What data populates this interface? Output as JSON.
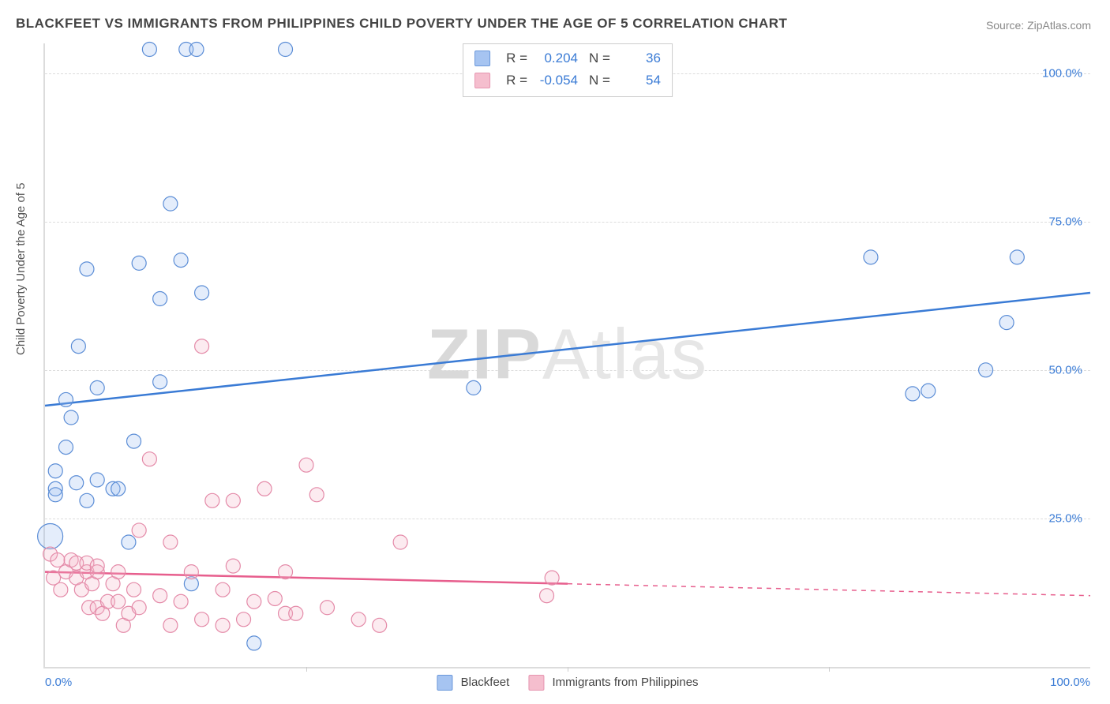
{
  "title": "BLACKFEET VS IMMIGRANTS FROM PHILIPPINES CHILD POVERTY UNDER THE AGE OF 5 CORRELATION CHART",
  "source_label": "Source:",
  "source_value": "ZipAtlas.com",
  "watermark_a": "ZIP",
  "watermark_b": "Atlas",
  "ylabel": "Child Poverty Under the Age of 5",
  "chart": {
    "type": "scatter-with-regression",
    "xlim": [
      0,
      100
    ],
    "ylim": [
      0,
      105
    ],
    "x_ticks_minor": [
      25,
      50,
      75
    ],
    "x_tick_labels": [
      "0.0%",
      "100.0%"
    ],
    "y_grid": [
      25,
      50,
      75,
      100
    ],
    "y_tick_labels": [
      "25.0%",
      "50.0%",
      "75.0%",
      "100.0%"
    ],
    "background_color": "#ffffff",
    "grid_color": "#dcdcdc",
    "axis_label_color": "#3a7bd5",
    "marker_radius": 9,
    "marker_radius_big": 16,
    "marker_stroke_width": 1.2,
    "marker_fill_opacity": 0.28,
    "trend_line_width": 2.5
  },
  "series": [
    {
      "name": "Blackfeet",
      "color_stroke": "#5b8dd6",
      "color_fill": "#9dbef0",
      "trend_color": "#3a7bd5",
      "R": "0.204",
      "N": "36",
      "trend": {
        "x1": 0,
        "y1": 44,
        "x2": 100,
        "y2": 63,
        "solid_until": 100
      },
      "points": [
        {
          "x": 0.5,
          "y": 22,
          "big": true
        },
        {
          "x": 1,
          "y": 33
        },
        {
          "x": 1,
          "y": 30
        },
        {
          "x": 1,
          "y": 29
        },
        {
          "x": 2,
          "y": 37
        },
        {
          "x": 2,
          "y": 45
        },
        {
          "x": 2.5,
          "y": 42
        },
        {
          "x": 3,
          "y": 31
        },
        {
          "x": 3.2,
          "y": 54
        },
        {
          "x": 4,
          "y": 67
        },
        {
          "x": 4,
          "y": 28
        },
        {
          "x": 5,
          "y": 31.5
        },
        {
          "x": 5,
          "y": 47
        },
        {
          "x": 6.5,
          "y": 30
        },
        {
          "x": 7,
          "y": 30
        },
        {
          "x": 8,
          "y": 21
        },
        {
          "x": 8.5,
          "y": 38
        },
        {
          "x": 9,
          "y": 68
        },
        {
          "x": 10,
          "y": 104
        },
        {
          "x": 11,
          "y": 48
        },
        {
          "x": 11,
          "y": 62
        },
        {
          "x": 12,
          "y": 78
        },
        {
          "x": 13,
          "y": 68.5
        },
        {
          "x": 13.5,
          "y": 104
        },
        {
          "x": 14,
          "y": 14
        },
        {
          "x": 14.5,
          "y": 104
        },
        {
          "x": 15,
          "y": 63
        },
        {
          "x": 20,
          "y": 4
        },
        {
          "x": 23,
          "y": 104
        },
        {
          "x": 41,
          "y": 47
        },
        {
          "x": 79,
          "y": 69
        },
        {
          "x": 83,
          "y": 46
        },
        {
          "x": 84.5,
          "y": 46.5
        },
        {
          "x": 90,
          "y": 50
        },
        {
          "x": 92,
          "y": 58
        },
        {
          "x": 93,
          "y": 69
        }
      ]
    },
    {
      "name": "Immigrants from Philippines",
      "color_stroke": "#e48aa8",
      "color_fill": "#f4b7c9",
      "trend_color": "#e75e8d",
      "R": "-0.054",
      "N": "54",
      "trend": {
        "x1": 0,
        "y1": 16,
        "x2": 100,
        "y2": 12,
        "solid_until": 50
      },
      "points": [
        {
          "x": 0.5,
          "y": 19
        },
        {
          "x": 0.8,
          "y": 15
        },
        {
          "x": 1.2,
          "y": 18
        },
        {
          "x": 1.5,
          "y": 13
        },
        {
          "x": 2,
          "y": 16
        },
        {
          "x": 2.5,
          "y": 18
        },
        {
          "x": 3,
          "y": 15
        },
        {
          "x": 3,
          "y": 17.5
        },
        {
          "x": 3.5,
          "y": 13
        },
        {
          "x": 4,
          "y": 16
        },
        {
          "x": 4,
          "y": 17.5
        },
        {
          "x": 4.2,
          "y": 10
        },
        {
          "x": 4.5,
          "y": 14
        },
        {
          "x": 5,
          "y": 10
        },
        {
          "x": 5,
          "y": 16
        },
        {
          "x": 5,
          "y": 17
        },
        {
          "x": 5.5,
          "y": 9
        },
        {
          "x": 6,
          "y": 11
        },
        {
          "x": 6.5,
          "y": 14
        },
        {
          "x": 7,
          "y": 11
        },
        {
          "x": 7,
          "y": 16
        },
        {
          "x": 7.5,
          "y": 7
        },
        {
          "x": 8,
          "y": 9
        },
        {
          "x": 8.5,
          "y": 13
        },
        {
          "x": 9,
          "y": 10
        },
        {
          "x": 9,
          "y": 23
        },
        {
          "x": 10,
          "y": 35
        },
        {
          "x": 11,
          "y": 12
        },
        {
          "x": 12,
          "y": 21
        },
        {
          "x": 12,
          "y": 7
        },
        {
          "x": 13,
          "y": 11
        },
        {
          "x": 14,
          "y": 16
        },
        {
          "x": 15,
          "y": 54
        },
        {
          "x": 15,
          "y": 8
        },
        {
          "x": 16,
          "y": 28
        },
        {
          "x": 17,
          "y": 13
        },
        {
          "x": 17,
          "y": 7
        },
        {
          "x": 18,
          "y": 17
        },
        {
          "x": 18,
          "y": 28
        },
        {
          "x": 19,
          "y": 8
        },
        {
          "x": 20,
          "y": 11
        },
        {
          "x": 21,
          "y": 30
        },
        {
          "x": 22,
          "y": 11.5
        },
        {
          "x": 23,
          "y": 9
        },
        {
          "x": 23,
          "y": 16
        },
        {
          "x": 24,
          "y": 9
        },
        {
          "x": 25,
          "y": 34
        },
        {
          "x": 26,
          "y": 29
        },
        {
          "x": 27,
          "y": 10
        },
        {
          "x": 30,
          "y": 8
        },
        {
          "x": 32,
          "y": 7
        },
        {
          "x": 34,
          "y": 21
        },
        {
          "x": 48,
          "y": 12
        },
        {
          "x": 48.5,
          "y": 15
        }
      ]
    }
  ],
  "legend": {
    "series_a": "Blackfeet",
    "series_b": "Immigrants from Philippines"
  },
  "stats_labels": {
    "r": "R =",
    "n": "N ="
  }
}
